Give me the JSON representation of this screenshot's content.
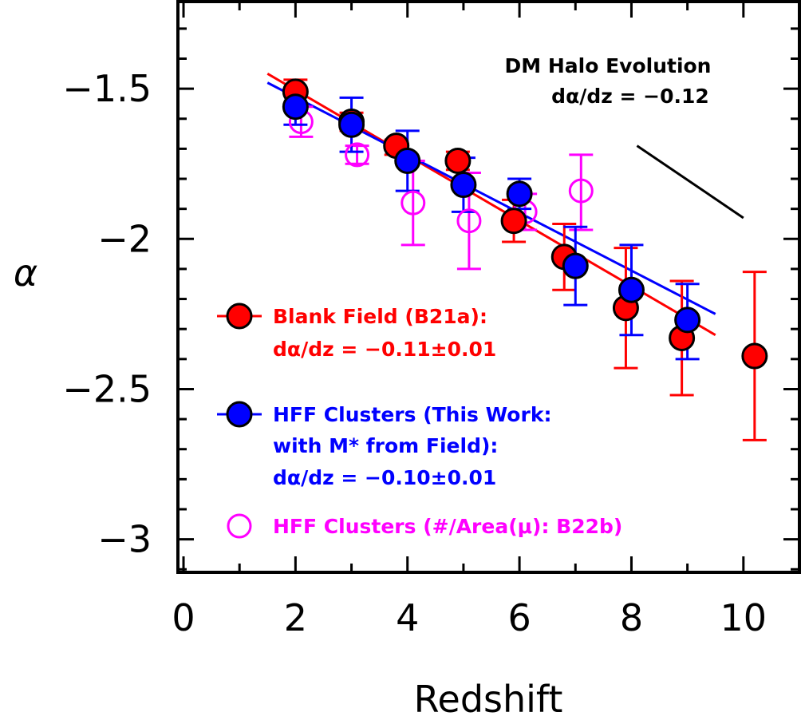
{
  "chart_data": {
    "type": "scatter",
    "xlabel": "Redshift",
    "ylabel": "α",
    "xlim": [
      -0.1,
      11.0
    ],
    "ylim": [
      -3.11,
      -1.21
    ],
    "x_ticks": [
      "0",
      "2",
      "4",
      "6",
      "8",
      "10"
    ],
    "x_tick_values": [
      0,
      2,
      4,
      6,
      8,
      10
    ],
    "y_ticks": [
      "−1.5",
      "−2",
      "−2.5",
      "−3"
    ],
    "y_tick_values": [
      -1.5,
      -2.0,
      -2.5,
      -3.0
    ],
    "legend_position": "lower-left",
    "series": [
      {
        "name": "Blank Field (B21a):",
        "slope_text": "dα/dz = −0.11±0.01",
        "color": "#ff0000",
        "marker": "filled-circle",
        "points": [
          {
            "x": 2.0,
            "y": -1.51,
            "ylo": -1.55,
            "yhi": -1.47
          },
          {
            "x": 3.0,
            "y": -1.61,
            "ylo": -1.64,
            "yhi": -1.58
          },
          {
            "x": 3.8,
            "y": -1.69,
            "ylo": -1.72,
            "yhi": -1.67
          },
          {
            "x": 4.9,
            "y": -1.74,
            "ylo": -1.77,
            "yhi": -1.71
          },
          {
            "x": 5.9,
            "y": -1.94,
            "ylo": -2.01,
            "yhi": -1.87
          },
          {
            "x": 6.8,
            "y": -2.06,
            "ylo": -2.17,
            "yhi": -1.95
          },
          {
            "x": 7.9,
            "y": -2.23,
            "ylo": -2.43,
            "yhi": -2.03
          },
          {
            "x": 8.9,
            "y": -2.33,
            "ylo": -2.52,
            "yhi": -2.14
          },
          {
            "x": 10.2,
            "y": -2.39,
            "ylo": -2.67,
            "yhi": -2.11
          }
        ],
        "fit": {
          "x": [
            1.5,
            9.5
          ],
          "y": [
            -1.45,
            -2.32
          ]
        }
      },
      {
        "name": "HFF Clusters (This Work:",
        "name_line2": "with M* from Field):",
        "slope_text": "dα/dz = −0.10±0.01",
        "color": "#0000ff",
        "marker": "filled-circle",
        "points": [
          {
            "x": 2.0,
            "y": -1.56,
            "ylo": -1.62,
            "yhi": -1.5
          },
          {
            "x": 3.0,
            "y": -1.62,
            "ylo": -1.71,
            "yhi": -1.53
          },
          {
            "x": 4.0,
            "y": -1.74,
            "ylo": -1.84,
            "yhi": -1.64
          },
          {
            "x": 5.0,
            "y": -1.82,
            "ylo": -1.91,
            "yhi": -1.73
          },
          {
            "x": 6.0,
            "y": -1.85,
            "ylo": -1.9,
            "yhi": -1.8
          },
          {
            "x": 7.0,
            "y": -2.09,
            "ylo": -2.22,
            "yhi": -1.96
          },
          {
            "x": 8.0,
            "y": -2.17,
            "ylo": -2.32,
            "yhi": -2.02
          },
          {
            "x": 9.0,
            "y": -2.27,
            "ylo": -2.4,
            "yhi": -2.15
          }
        ],
        "fit": {
          "x": [
            1.5,
            9.5
          ],
          "y": [
            -1.48,
            -2.25
          ]
        }
      },
      {
        "name": "HFF Clusters (#/Area(μ): B22b)",
        "color": "#ff00ff",
        "marker": "open-circle",
        "points": [
          {
            "x": 2.1,
            "y": -1.61,
            "ylo": -1.66,
            "yhi": -1.56
          },
          {
            "x": 3.1,
            "y": -1.72,
            "ylo": -1.75,
            "yhi": -1.69
          },
          {
            "x": 4.1,
            "y": -1.88,
            "ylo": -2.02,
            "yhi": -1.74
          },
          {
            "x": 5.1,
            "y": -1.94,
            "ylo": -2.1,
            "yhi": -1.78
          },
          {
            "x": 6.1,
            "y": -1.91,
            "ylo": -1.97,
            "yhi": -1.85
          },
          {
            "x": 7.1,
            "y": -1.84,
            "ylo": -1.97,
            "yhi": -1.72
          }
        ]
      }
    ],
    "annotation": {
      "title": "DM Halo Evolution",
      "slope_text": "dα/dz = −0.12",
      "color": "#000000",
      "line": {
        "x": [
          8.1,
          10.0
        ],
        "y": [
          -1.69,
          -1.93
        ]
      }
    }
  }
}
